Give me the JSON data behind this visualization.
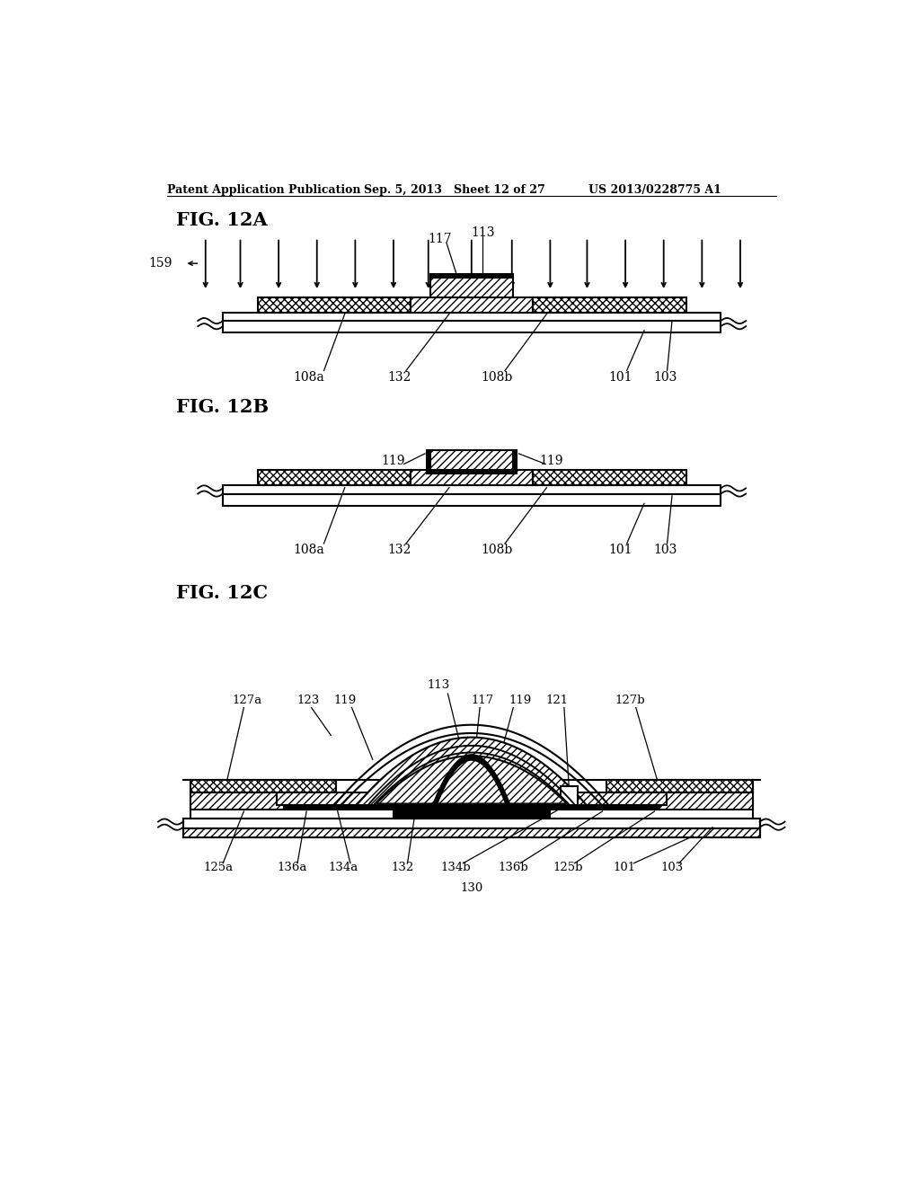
{
  "header_left": "Patent Application Publication",
  "header_mid": "Sep. 5, 2013   Sheet 12 of 27",
  "header_right": "US 2013/0228775 A1",
  "bg_color": "#ffffff",
  "line_color": "#000000"
}
